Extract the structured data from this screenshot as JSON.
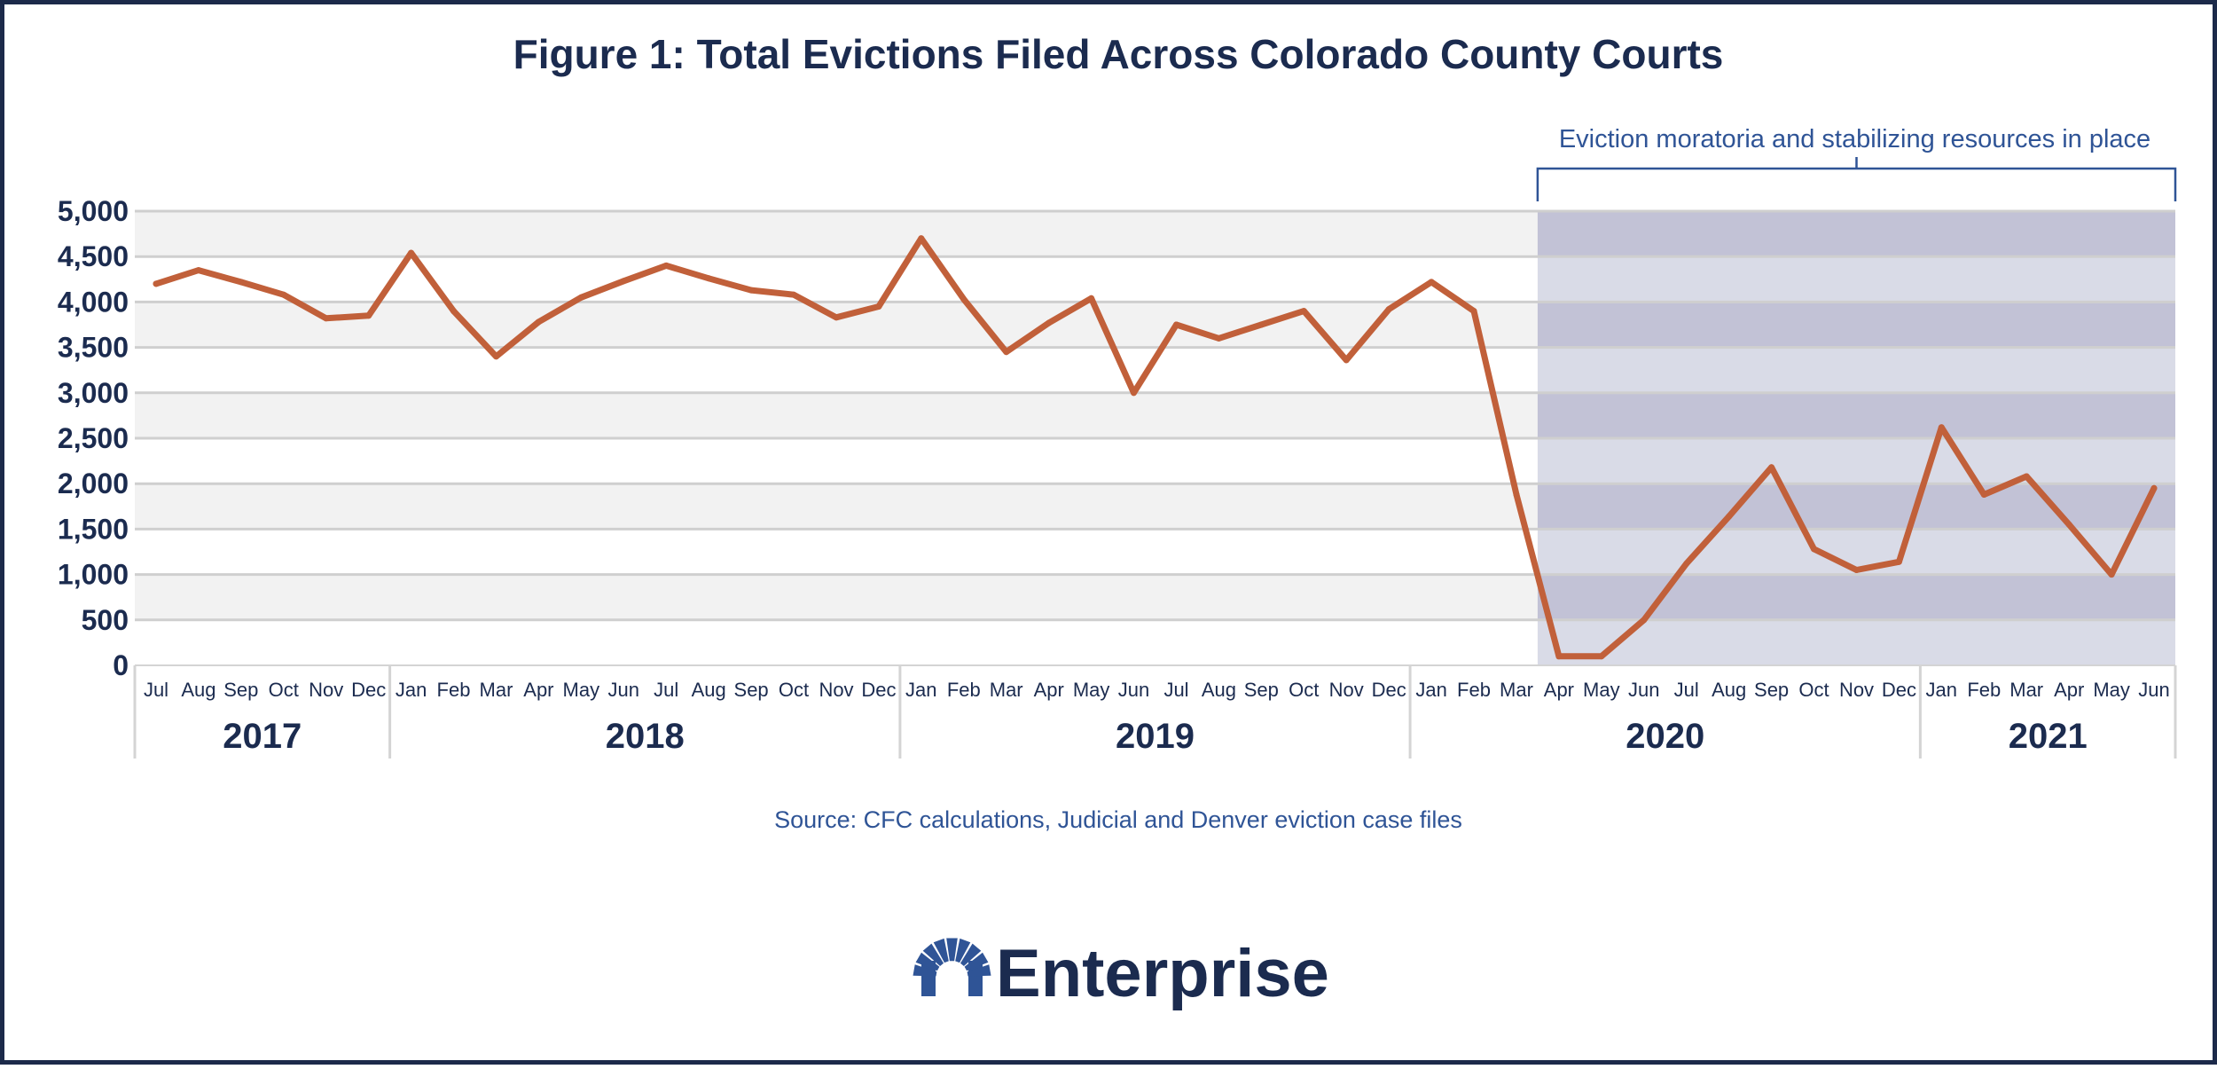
{
  "title": "Figure 1: Total Evictions Filed Across Colorado County Courts",
  "source": "Source: CFC calculations, Judicial and Denver eviction case files",
  "brand": {
    "name": "Enterprise",
    "icon": "enterprise-arch-logo-icon"
  },
  "colors": {
    "line": "#c1603a",
    "band_dark": "#c2c2d6",
    "band_light": "#d9dbe7",
    "stripe": "#f2f2f2",
    "text": "#1b2b4f",
    "accent": "#2f5496",
    "frame": "#1c2a4a"
  },
  "chart_data": {
    "type": "line",
    "title": "Figure 1: Total Evictions Filed Across Colorado County Courts",
    "xlabel": "",
    "ylabel": "",
    "ylim": [
      0,
      5000
    ],
    "yticks": [
      0,
      500,
      1000,
      1500,
      2000,
      2500,
      3000,
      3500,
      4000,
      4500,
      5000
    ],
    "ytick_labels": [
      "0",
      "500",
      "1,000",
      "1,500",
      "2,000",
      "2,500",
      "3,000",
      "3,500",
      "4,000",
      "4,500",
      "5,000"
    ],
    "grid": true,
    "months": [
      "Jul",
      "Aug",
      "Sep",
      "Oct",
      "Nov",
      "Dec",
      "Jan",
      "Feb",
      "Mar",
      "Apr",
      "May",
      "Jun",
      "Jul",
      "Aug",
      "Sep",
      "Oct",
      "Nov",
      "Dec",
      "Jan",
      "Feb",
      "Mar",
      "Apr",
      "May",
      "Jun",
      "Jul",
      "Aug",
      "Sep",
      "Oct",
      "Nov",
      "Dec",
      "Jan",
      "Feb",
      "Mar",
      "Apr",
      "May",
      "Jun",
      "Jul",
      "Aug",
      "Sep",
      "Oct",
      "Nov",
      "Dec",
      "Jan",
      "Feb",
      "Mar",
      "Apr",
      "May",
      "Jun"
    ],
    "years": [
      {
        "label": "2017",
        "start": 0,
        "count": 6
      },
      {
        "label": "2018",
        "start": 6,
        "count": 12
      },
      {
        "label": "2019",
        "start": 18,
        "count": 12
      },
      {
        "label": "2020",
        "start": 30,
        "count": 12
      },
      {
        "label": "2021",
        "start": 42,
        "count": 6
      }
    ],
    "series": [
      {
        "values": [
          4200,
          4350,
          4220,
          4080,
          3820,
          3850,
          4540,
          3900,
          3400,
          3780,
          4050,
          4230,
          4400,
          4260,
          4130,
          4080,
          3830,
          3950,
          4700,
          4030,
          3450,
          3770,
          4040,
          3000,
          3750,
          3600,
          3750,
          3900,
          3360,
          3920,
          4220,
          3900,
          1880,
          100,
          100,
          500,
          1120,
          1640,
          2180,
          1280,
          1050,
          1140,
          2620,
          1880,
          2080,
          1550,
          1000,
          1950
        ]
      }
    ],
    "annotation": {
      "text": "Eviction moratoria and stabilizing resources in place",
      "start_index": 32.5,
      "end_index": 47.5
    }
  }
}
